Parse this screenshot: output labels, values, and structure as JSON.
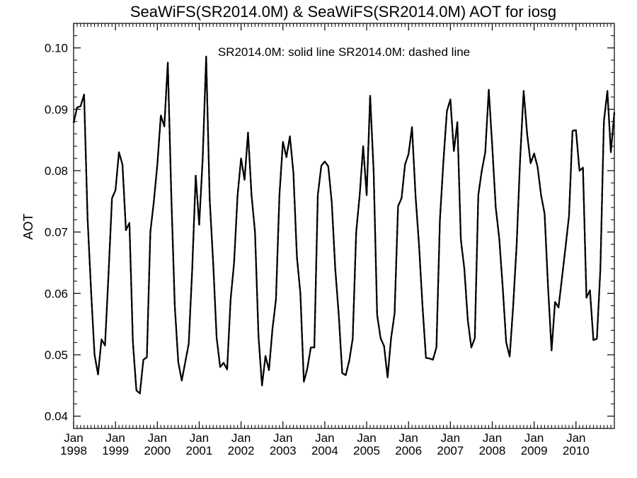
{
  "chart_data": {
    "type": "line",
    "title": "SeaWiFS(SR2014.0M) & SeaWiFS(SR2014.0M)  AOT for iosg",
    "legend_text": "SR2014.0M: solid line   SR2014.0M: dashed line",
    "ylabel": "AOT",
    "xlabel": "",
    "ylim": [
      0.038,
      0.104
    ],
    "xlim": [
      "1998-01",
      "2010-12"
    ],
    "yticks": [
      {
        "value": 0.04,
        "label": "0.04"
      },
      {
        "value": 0.05,
        "label": "0.05"
      },
      {
        "value": 0.06,
        "label": "0.06"
      },
      {
        "value": 0.07,
        "label": "0.07"
      },
      {
        "value": 0.08,
        "label": "0.08"
      },
      {
        "value": 0.09,
        "label": "0.09"
      },
      {
        "value": 0.1,
        "label": "0.10"
      }
    ],
    "xticks": [
      {
        "value": "1998-01",
        "month": "Jan",
        "year": "1998"
      },
      {
        "value": "1999-01",
        "month": "Jan",
        "year": "1999"
      },
      {
        "value": "2000-01",
        "month": "Jan",
        "year": "2000"
      },
      {
        "value": "2001-01",
        "month": "Jan",
        "year": "2001"
      },
      {
        "value": "2002-01",
        "month": "Jan",
        "year": "2002"
      },
      {
        "value": "2003-01",
        "month": "Jan",
        "year": "2003"
      },
      {
        "value": "2004-01",
        "month": "Jan",
        "year": "2004"
      },
      {
        "value": "2005-01",
        "month": "Jan",
        "year": "2005"
      },
      {
        "value": "2006-01",
        "month": "Jan",
        "year": "2006"
      },
      {
        "value": "2007-01",
        "month": "Jan",
        "year": "2007"
      },
      {
        "value": "2008-01",
        "month": "Jan",
        "year": "2008"
      },
      {
        "value": "2009-01",
        "month": "Jan",
        "year": "2009"
      },
      {
        "value": "2010-01",
        "month": "Jan",
        "year": "2010"
      }
    ],
    "minor_ticks_per_year": 12,
    "series": [
      {
        "name": "SR2014.0M",
        "style": "solid",
        "color": "#000000",
        "x": [
          "1998-01",
          "1998-02",
          "1998-03",
          "1998-04",
          "1998-05",
          "1998-06",
          "1998-07",
          "1998-08",
          "1998-09",
          "1998-10",
          "1998-11",
          "1998-12",
          "1999-01",
          "1999-02",
          "1999-03",
          "1999-04",
          "1999-05",
          "1999-06",
          "1999-07",
          "1999-08",
          "1999-09",
          "1999-10",
          "1999-11",
          "1999-12",
          "2000-01",
          "2000-02",
          "2000-03",
          "2000-04",
          "2000-05",
          "2000-06",
          "2000-07",
          "2000-08",
          "2000-09",
          "2000-10",
          "2000-11",
          "2000-12",
          "2001-01",
          "2001-02",
          "2001-03",
          "2001-04",
          "2001-05",
          "2001-06",
          "2001-07",
          "2001-08",
          "2001-09",
          "2001-10",
          "2001-11",
          "2001-12",
          "2002-01",
          "2002-02",
          "2002-03",
          "2002-04",
          "2002-05",
          "2002-06",
          "2002-07",
          "2002-08",
          "2002-09",
          "2002-10",
          "2002-11",
          "2002-12",
          "2003-01",
          "2003-02",
          "2003-03",
          "2003-04",
          "2003-05",
          "2003-06",
          "2003-07",
          "2003-08",
          "2003-09",
          "2003-10",
          "2003-11",
          "2003-12",
          "2004-01",
          "2004-02",
          "2004-03",
          "2004-04",
          "2004-05",
          "2004-06",
          "2004-07",
          "2004-08",
          "2004-09",
          "2004-10",
          "2004-11",
          "2004-12",
          "2005-01",
          "2005-02",
          "2005-03",
          "2005-04",
          "2005-05",
          "2005-06",
          "2005-07",
          "2005-08",
          "2005-09",
          "2005-10",
          "2005-11",
          "2005-12",
          "2006-01",
          "2006-02",
          "2006-03",
          "2006-04",
          "2006-05",
          "2006-06",
          "2006-07",
          "2006-08",
          "2006-09",
          "2006-10",
          "2006-11",
          "2006-12",
          "2007-01",
          "2007-02",
          "2007-03",
          "2007-04",
          "2007-05",
          "2007-06",
          "2007-07",
          "2007-08",
          "2007-09",
          "2007-10",
          "2007-11",
          "2007-12",
          "2008-01",
          "2008-02",
          "2008-03",
          "2008-04",
          "2008-05",
          "2008-06",
          "2008-07",
          "2008-08",
          "2008-09",
          "2008-10",
          "2008-11",
          "2008-12",
          "2009-01",
          "2009-02",
          "2009-03",
          "2009-04",
          "2009-05",
          "2009-06",
          "2009-07",
          "2009-08",
          "2009-09",
          "2009-10",
          "2009-11",
          "2009-12",
          "2010-01",
          "2010-02",
          "2010-03",
          "2010-04",
          "2010-05",
          "2010-06",
          "2010-07",
          "2010-08",
          "2010-09",
          "2010-10",
          "2010-11",
          "2010-12"
        ],
        "values": [
          0.0878,
          0.0903,
          0.0905,
          0.0924,
          0.0723,
          0.0605,
          0.05,
          0.0468,
          0.0525,
          0.0515,
          0.063,
          0.0755,
          0.0768,
          0.083,
          0.081,
          0.0703,
          0.0715,
          0.052,
          0.0442,
          0.0437,
          0.0492,
          0.0496,
          0.07,
          0.075,
          0.081,
          0.089,
          0.0872,
          0.0976,
          0.076,
          0.058,
          0.0488,
          0.0458,
          0.0488,
          0.0518,
          0.064,
          0.0792,
          0.0712,
          0.082,
          0.0986,
          0.0755,
          0.065,
          0.0528,
          0.048,
          0.0487,
          0.0476,
          0.059,
          0.065,
          0.076,
          0.082,
          0.0785,
          0.0862,
          0.076,
          0.07,
          0.053,
          0.045,
          0.0498,
          0.0475,
          0.0542,
          0.059,
          0.076,
          0.0847,
          0.0822,
          0.0856,
          0.0797,
          0.066,
          0.06,
          0.0456,
          0.0478,
          0.0512,
          0.0512,
          0.076,
          0.0808,
          0.0815,
          0.0807,
          0.0748,
          0.064,
          0.0565,
          0.047,
          0.0467,
          0.049,
          0.0526,
          0.07,
          0.076,
          0.084,
          0.076,
          0.0922,
          0.08,
          0.0565,
          0.0527,
          0.0514,
          0.0463,
          0.0527,
          0.0567,
          0.0742,
          0.0755,
          0.081,
          0.0827,
          0.0871,
          0.076,
          0.068,
          0.058,
          0.0495,
          0.0494,
          0.0492,
          0.0512,
          0.072,
          0.0815,
          0.0897,
          0.0916,
          0.0832,
          0.0879,
          0.0688,
          0.064,
          0.0556,
          0.0512,
          0.0527,
          0.076,
          0.08,
          0.083,
          0.0932,
          0.084,
          0.074,
          0.069,
          0.061,
          0.052,
          0.0497,
          0.058,
          0.068,
          0.082,
          0.093,
          0.086,
          0.0812,
          0.0828,
          0.0806,
          0.076,
          0.073,
          0.061,
          0.0507,
          0.0586,
          0.0577,
          0.0626,
          0.0675,
          0.0726,
          0.0865,
          0.0866,
          0.08,
          0.0805,
          0.0593,
          0.0605,
          0.0524,
          0.0526,
          0.064,
          0.088,
          0.093,
          0.083,
          0.0895
        ]
      },
      {
        "name": "SR2014.0M",
        "style": "dashed",
        "color": "#000000",
        "x": [
          "1998-01",
          "1998-02",
          "1998-03",
          "1998-04",
          "1998-05",
          "1998-06",
          "1998-07",
          "1998-08",
          "1998-09",
          "1998-10",
          "1998-11",
          "1998-12",
          "1999-01",
          "1999-02",
          "1999-03",
          "1999-04",
          "1999-05",
          "1999-06",
          "1999-07",
          "1999-08",
          "1999-09",
          "1999-10",
          "1999-11",
          "1999-12",
          "2000-01",
          "2000-02",
          "2000-03",
          "2000-04",
          "2000-05",
          "2000-06",
          "2000-07",
          "2000-08",
          "2000-09",
          "2000-10",
          "2000-11",
          "2000-12",
          "2001-01",
          "2001-02",
          "2001-03",
          "2001-04",
          "2001-05",
          "2001-06",
          "2001-07",
          "2001-08",
          "2001-09",
          "2001-10",
          "2001-11",
          "2001-12",
          "2002-01",
          "2002-02",
          "2002-03",
          "2002-04",
          "2002-05",
          "2002-06",
          "2002-07",
          "2002-08",
          "2002-09",
          "2002-10",
          "2002-11",
          "2002-12",
          "2003-01",
          "2003-02",
          "2003-03",
          "2003-04",
          "2003-05",
          "2003-06",
          "2003-07",
          "2003-08",
          "2003-09",
          "2003-10",
          "2003-11",
          "2003-12",
          "2004-01",
          "2004-02",
          "2004-03",
          "2004-04",
          "2004-05",
          "2004-06",
          "2004-07",
          "2004-08",
          "2004-09",
          "2004-10",
          "2004-11",
          "2004-12",
          "2005-01",
          "2005-02",
          "2005-03",
          "2005-04",
          "2005-05",
          "2005-06",
          "2005-07",
          "2005-08",
          "2005-09",
          "2005-10",
          "2005-11",
          "2005-12",
          "2006-01",
          "2006-02",
          "2006-03",
          "2006-04",
          "2006-05",
          "2006-06",
          "2006-07",
          "2006-08",
          "2006-09",
          "2006-10",
          "2006-11",
          "2006-12",
          "2007-01",
          "2007-02",
          "2007-03",
          "2007-04",
          "2007-05",
          "2007-06",
          "2007-07",
          "2007-08",
          "2007-09",
          "2007-10",
          "2007-11",
          "2007-12",
          "2008-01",
          "2008-02",
          "2008-03",
          "2008-04",
          "2008-05",
          "2008-06",
          "2008-07",
          "2008-08",
          "2008-09",
          "2008-10",
          "2008-11",
          "2008-12",
          "2009-01",
          "2009-02",
          "2009-03",
          "2009-04",
          "2009-05",
          "2009-06",
          "2009-07",
          "2009-08",
          "2009-09",
          "2009-10",
          "2009-11",
          "2009-12",
          "2010-01",
          "2010-02",
          "2010-03",
          "2010-04",
          "2010-05",
          "2010-06",
          "2010-07",
          "2010-08",
          "2010-09",
          "2010-10",
          "2010-11",
          "2010-12"
        ],
        "values": [
          0.0878,
          0.0903,
          0.0905,
          0.0924,
          0.0723,
          0.0605,
          0.05,
          0.0468,
          0.0525,
          0.0515,
          0.063,
          0.0755,
          0.0768,
          0.083,
          0.081,
          0.0703,
          0.0715,
          0.052,
          0.0442,
          0.0437,
          0.0492,
          0.0496,
          0.07,
          0.075,
          0.081,
          0.089,
          0.0872,
          0.0976,
          0.076,
          0.058,
          0.0488,
          0.0458,
          0.0488,
          0.0518,
          0.064,
          0.0792,
          0.0712,
          0.082,
          0.0986,
          0.0755,
          0.065,
          0.0528,
          0.048,
          0.0487,
          0.0476,
          0.059,
          0.065,
          0.076,
          0.082,
          0.0785,
          0.0862,
          0.076,
          0.07,
          0.053,
          0.045,
          0.0498,
          0.0475,
          0.0542,
          0.059,
          0.076,
          0.0847,
          0.0822,
          0.0856,
          0.0797,
          0.066,
          0.06,
          0.0456,
          0.0478,
          0.0512,
          0.0512,
          0.076,
          0.0808,
          0.0815,
          0.0807,
          0.0748,
          0.064,
          0.0565,
          0.047,
          0.0467,
          0.049,
          0.0526,
          0.07,
          0.076,
          0.084,
          0.076,
          0.0922,
          0.08,
          0.0565,
          0.0527,
          0.0514,
          0.0463,
          0.0527,
          0.0567,
          0.0742,
          0.0755,
          0.081,
          0.0827,
          0.0871,
          0.076,
          0.068,
          0.058,
          0.0495,
          0.0494,
          0.0492,
          0.0512,
          0.072,
          0.0815,
          0.0897,
          0.0916,
          0.0832,
          0.0879,
          0.0688,
          0.064,
          0.0556,
          0.0512,
          0.0527,
          0.076,
          0.08,
          0.083,
          0.0932,
          0.084,
          0.074,
          0.069,
          0.061,
          0.052,
          0.0497,
          0.058,
          0.068,
          0.082,
          0.093,
          0.086,
          0.0812,
          0.0828,
          0.0806,
          0.076,
          0.073,
          0.061,
          0.0507,
          0.0586,
          0.0577,
          0.0626,
          0.0675,
          0.0726,
          0.0865,
          0.0866,
          0.08,
          0.0805,
          0.0593,
          0.0605,
          0.0524,
          0.0526,
          0.064,
          0.088,
          0.093,
          0.083,
          0.0895
        ]
      }
    ],
    "grid": false,
    "legend_position": "top-center"
  }
}
